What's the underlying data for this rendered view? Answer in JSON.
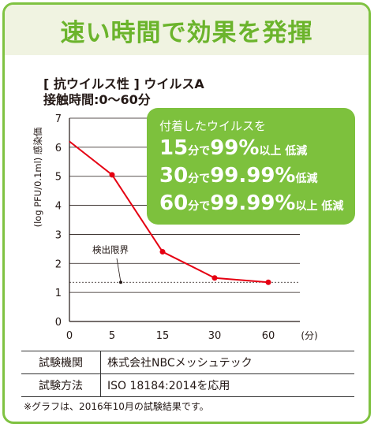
{
  "header": {
    "title": "速い時間で効果を発揮"
  },
  "subtitle": {
    "line1": "[ 抗ウイルス性 ] ウイルスA",
    "line2": "接触時間:0〜60分"
  },
  "callout": {
    "line1": "付着したウイルスを",
    "rows": [
      {
        "time": "15",
        "unit": "分で",
        "value": "99%",
        "suffix": "以上 低減"
      },
      {
        "time": "30",
        "unit": "分で",
        "value": "99.99%",
        "suffix": "低減"
      },
      {
        "time": "60",
        "unit": "分で",
        "value": "99.99%",
        "suffix": "以上 低減"
      }
    ]
  },
  "chart_data": {
    "type": "line",
    "ylabel": "(log PFU/0.1ml) 感染価",
    "xunit": "(分)",
    "x_categories": [
      "0",
      "5",
      "15",
      "30",
      "60"
    ],
    "y_ticks": [
      "0",
      "1",
      "2",
      "3",
      "4",
      "5",
      "6",
      "7"
    ],
    "ylim": [
      0,
      7
    ],
    "grid": true,
    "series": [
      {
        "values": [
          6.2,
          5.05,
          2.4,
          1.5,
          1.35
        ],
        "color": "#e50012"
      }
    ],
    "detection_limit": {
      "label": "検出限界",
      "value": 1.35
    }
  },
  "info_table": {
    "rows": [
      {
        "key": "試験機関",
        "value": "株式会社NBCメッシュテック"
      },
      {
        "key": "試験方法",
        "value": "ISO 18184:2014を応用"
      }
    ]
  },
  "footnote": "※グラフは、2016年10月の試験結果です。"
}
